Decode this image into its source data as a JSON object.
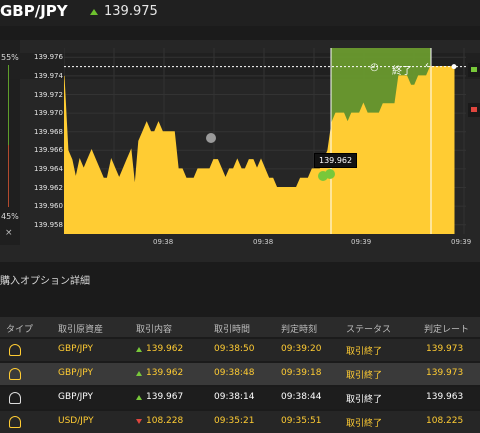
{
  "header": {
    "pair": "GBP/JPY",
    "price": "139.975"
  },
  "colors": {
    "gold": "#ffcc33",
    "end_zone": "#6a9a2e",
    "up": "#78c83a",
    "down": "#e0463e"
  },
  "left_panel": {
    "top_pct": "55%",
    "bottom_pct": "45%",
    "close": "×"
  },
  "end_zone": {
    "label": "終了",
    "icon": "clock-icon",
    "arrow": "‹"
  },
  "tooltip": "139.962",
  "chart_data": {
    "type": "area",
    "y_ticks": [
      "139.976",
      "139.974",
      "139.972",
      "139.970",
      "139.968",
      "139.966",
      "139.964",
      "139.962",
      "139.960",
      "139.958"
    ],
    "x_ticks": [
      "09:38",
      "09:38",
      "09:39",
      "09:39"
    ],
    "ylim": [
      139.957,
      139.977
    ],
    "reference_level": 139.975,
    "marker_value": 139.962,
    "x": [
      0,
      1,
      2,
      3,
      4,
      5,
      6,
      7,
      8,
      9,
      10,
      11,
      12,
      13,
      14,
      15,
      16,
      17,
      18,
      19,
      20,
      21,
      22,
      23,
      24,
      25,
      26,
      27,
      28,
      29,
      30,
      31,
      32,
      33,
      34,
      35,
      36,
      37,
      38,
      39,
      40,
      41,
      42,
      43,
      44,
      45,
      46,
      47,
      48,
      49,
      50,
      51,
      52,
      53,
      54,
      55,
      56,
      57,
      58,
      59,
      60,
      61,
      62,
      63,
      64,
      65,
      66,
      67,
      68,
      69,
      70,
      71,
      72,
      73,
      74,
      75,
      76,
      77,
      78,
      79,
      80,
      81,
      82,
      83,
      84,
      85,
      86,
      87,
      88,
      89,
      90,
      91,
      92,
      93,
      94,
      95,
      96,
      97,
      98,
      99
    ],
    "y": [
      139.974,
      139.966,
      139.965,
      139.963,
      139.965,
      139.964,
      139.965,
      139.966,
      139.965,
      139.964,
      139.963,
      139.963,
      139.965,
      139.964,
      139.963,
      139.964,
      139.965,
      139.966,
      139.962,
      139.967,
      139.968,
      139.969,
      139.968,
      139.968,
      139.969,
      139.968,
      139.968,
      139.968,
      139.968,
      139.964,
      139.964,
      139.963,
      139.963,
      139.963,
      139.964,
      139.964,
      139.964,
      139.964,
      139.965,
      139.965,
      139.964,
      139.963,
      139.964,
      139.964,
      139.965,
      139.964,
      139.964,
      139.965,
      139.965,
      139.964,
      139.965,
      139.964,
      139.963,
      139.963,
      139.962,
      139.962,
      139.962,
      139.962,
      139.962,
      139.962,
      139.963,
      139.963,
      139.963,
      139.964,
      139.964,
      139.964,
      139.965,
      139.966,
      139.969,
      139.97,
      139.97,
      139.97,
      139.969,
      139.97,
      139.97,
      139.97,
      139.971,
      139.97,
      139.97,
      139.97,
      139.97,
      139.971,
      139.971,
      139.971,
      139.971,
      139.974,
      139.974,
      139.974,
      139.973,
      139.973,
      139.974,
      139.974,
      139.974,
      139.975,
      139.975,
      139.975,
      139.975,
      139.975,
      139.975,
      139.975
    ]
  },
  "section_title": "購入オプション詳細",
  "table": {
    "headers": [
      "タイプ",
      "取引原資産",
      "取引内容",
      "取引時間",
      "判定時刻",
      "ステータス",
      "判定レート"
    ],
    "rows": [
      {
        "asset": "GBP/JPY",
        "dir": "up",
        "content": "139.962",
        "time": "09:38:50",
        "judge": "09:39:20",
        "status": "取引終了",
        "rate": "139.973",
        "color": "gold"
      },
      {
        "asset": "GBP/JPY",
        "dir": "up",
        "content": "139.962",
        "time": "09:38:48",
        "judge": "09:39:18",
        "status": "取引終了",
        "rate": "139.973",
        "color": "gold"
      },
      {
        "asset": "GBP/JPY",
        "dir": "up",
        "content": "139.967",
        "time": "09:38:14",
        "judge": "09:38:44",
        "status": "取引終了",
        "rate": "139.963",
        "color": "white"
      },
      {
        "asset": "USD/JPY",
        "dir": "down",
        "content": "108.228",
        "time": "09:35:21",
        "judge": "09:35:51",
        "status": "取引終了",
        "rate": "108.225",
        "color": "gold"
      }
    ]
  }
}
